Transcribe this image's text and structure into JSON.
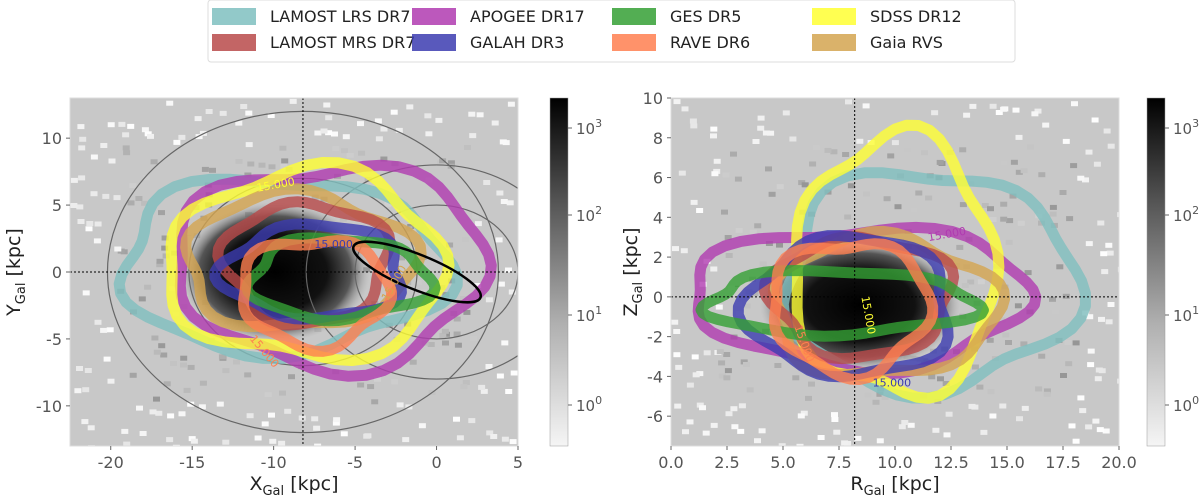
{
  "legend": {
    "entries": [
      {
        "name": "LAMOST LRS DR7",
        "color": "#7fbfbf"
      },
      {
        "name": "LAMOST MRS DR7",
        "color": "#b84a4a"
      },
      {
        "name": "APOGEE DR17",
        "color": "#b03bb0"
      },
      {
        "name": "GALAH DR3",
        "color": "#3c3cb0"
      },
      {
        "name": "GES DR5",
        "color": "#35a035"
      },
      {
        "name": "RAVE DR6",
        "color": "#ff7f50"
      },
      {
        "name": "SDSS DR12",
        "color": "#ffff33"
      },
      {
        "name": "Gaia RVS",
        "color": "#d4a550"
      }
    ]
  },
  "chart_data": [
    {
      "type": "heatmap",
      "panel": "left",
      "xlabel": "X_Gal [kpc]",
      "xlabel_main": "X",
      "xlabel_sub": "Gal",
      "xlabel_unit": "[kpc]",
      "ylabel": "Y_Gal [kpc]",
      "ylabel_main": "Y",
      "ylabel_sub": "Gal",
      "ylabel_unit": "[kpc]",
      "xlim": [
        -22.5,
        5
      ],
      "ylim": [
        -13,
        13
      ],
      "xticks": [
        -20,
        -15,
        -10,
        -5,
        0,
        5
      ],
      "yticks": [
        -10,
        -5,
        0,
        5,
        10
      ],
      "sun_marker": {
        "x": -8.2,
        "y": 0
      },
      "contour_level_label": "15.000",
      "colorbar": {
        "scale": "log",
        "ticks": [
          "10^0",
          "10^1",
          "10^2",
          "10^3"
        ]
      },
      "contours": [
        {
          "survey": "LAMOST LRS DR7",
          "center": [
            -9.5,
            0.5
          ],
          "radii": [
            10,
            6.5
          ]
        },
        {
          "survey": "APOGEE DR17",
          "center": [
            -6.5,
            0.5
          ],
          "radii": [
            9.5,
            7.5
          ]
        },
        {
          "survey": "SDSS DR12",
          "center": [
            -8,
            0.5
          ],
          "radii": [
            8.5,
            7
          ]
        },
        {
          "survey": "Gaia RVS",
          "center": [
            -8.5,
            0.8
          ],
          "radii": [
            7,
            5
          ]
        },
        {
          "survey": "LAMOST MRS DR7",
          "center": [
            -8,
            0.7
          ],
          "radii": [
            5,
            4.5
          ]
        },
        {
          "survey": "GALAH DR3",
          "center": [
            -7.5,
            0
          ],
          "radii": [
            5.5,
            3.5
          ]
        },
        {
          "survey": "GES DR5",
          "center": [
            -6,
            -0.5
          ],
          "radii": [
            5.5,
            3
          ]
        },
        {
          "survey": "RAVE DR6",
          "center": [
            -7.5,
            -1.5
          ],
          "radii": [
            4.5,
            4
          ]
        }
      ],
      "bar_ellipse": {
        "center": [
          -1.2,
          0
        ],
        "radii": [
          4.2,
          1.3
        ],
        "angle_deg": -22
      }
    },
    {
      "type": "heatmap",
      "panel": "right",
      "xlabel": "R_Gal [kpc]",
      "xlabel_main": "R",
      "xlabel_sub": "Gal",
      "xlabel_unit": "[kpc]",
      "ylabel": "Z_Gal [kpc]",
      "ylabel_main": "Z",
      "ylabel_sub": "Gal",
      "ylabel_unit": "[kpc]",
      "xlim": [
        0,
        20
      ],
      "ylim": [
        -7.5,
        10
      ],
      "xticks": [
        "0.0",
        "2.5",
        "5.0",
        "7.5",
        "10.0",
        "12.5",
        "15.0",
        "17.5",
        "20.0"
      ],
      "yticks": [
        -6,
        -4,
        -2,
        0,
        2,
        4,
        6,
        8,
        10
      ],
      "sun_marker": {
        "x": 8.2,
        "y": 0
      },
      "contour_level_label": "15.000",
      "colorbar": {
        "scale": "log",
        "ticks": [
          "10^0",
          "10^1",
          "10^2",
          "10^3"
        ]
      },
      "contours": [
        {
          "survey": "LAMOST LRS DR7",
          "center": [
            11.5,
            0.8
          ],
          "radii": [
            6.5,
            5.5
          ]
        },
        {
          "survey": "APOGEE DR17",
          "center": [
            8.5,
            0
          ],
          "radii": [
            7.5,
            3.5
          ]
        },
        {
          "survey": "SDSS DR12",
          "center": [
            10,
            1.5
          ],
          "radii": [
            4.5,
            6.5
          ]
        },
        {
          "survey": "Gaia RVS",
          "center": [
            9.5,
            -0.5
          ],
          "radii": [
            5,
            3.5
          ]
        },
        {
          "survey": "LAMOST MRS DR7",
          "center": [
            8.5,
            0
          ],
          "radii": [
            4,
            3
          ]
        },
        {
          "survey": "GALAH DR3",
          "center": [
            8,
            -0.5
          ],
          "radii": [
            4.5,
            3.5
          ]
        },
        {
          "survey": "GES DR5",
          "center": [
            7.5,
            -0.3
          ],
          "radii": [
            6,
            1.6
          ]
        },
        {
          "survey": "RAVE DR6",
          "center": [
            8,
            -0.5
          ],
          "radii": [
            3.5,
            3.3
          ]
        }
      ]
    }
  ]
}
